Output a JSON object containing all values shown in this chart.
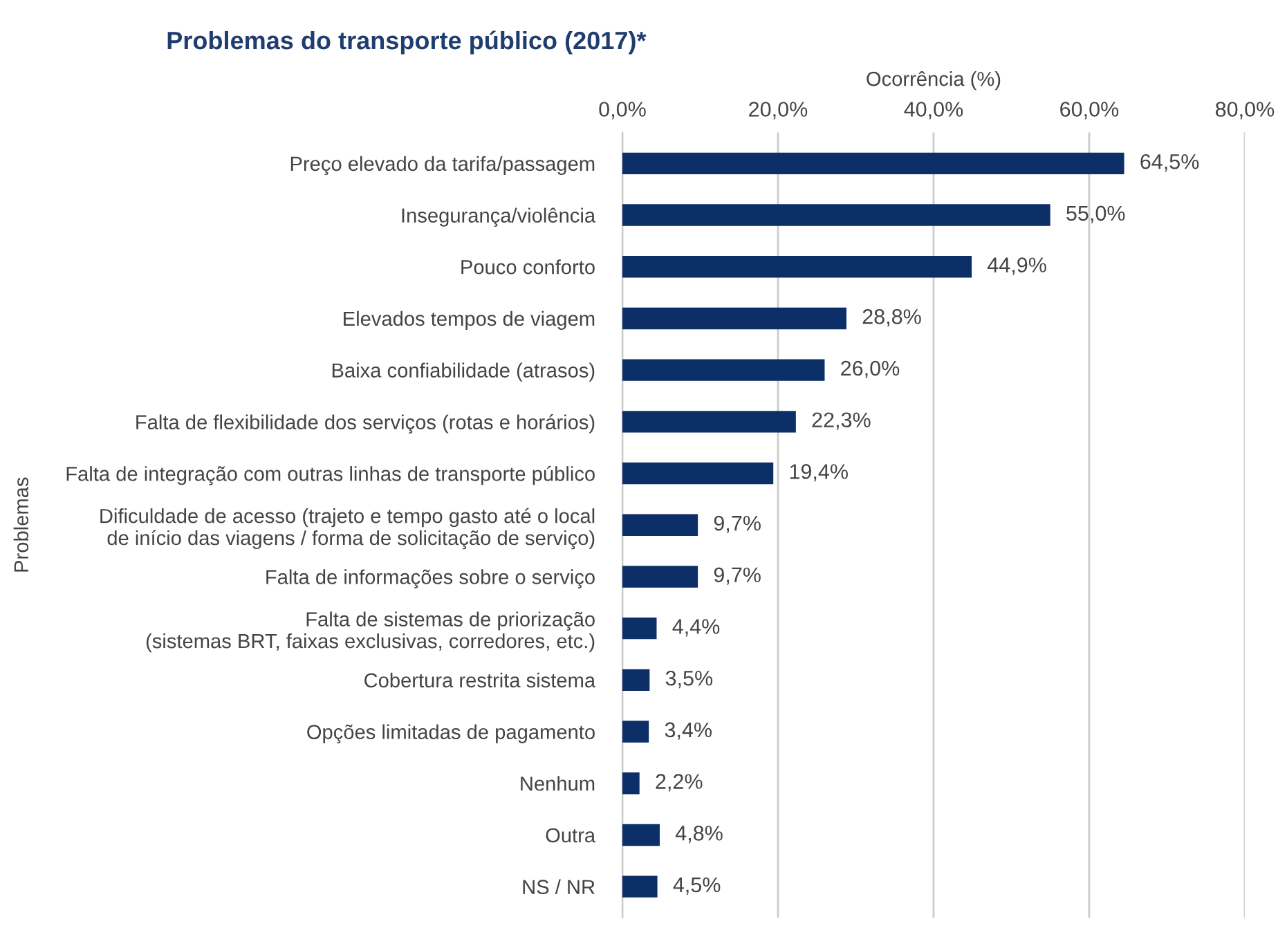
{
  "chart_data": {
    "type": "bar",
    "orientation": "horizontal",
    "title": "Problemas do transporte público (2017)*",
    "xlabel": "Ocorrência (%)",
    "ylabel": "Problemas",
    "categories": [
      "Preço elevado da tarifa/passagem",
      "Insegurança/violência",
      "Pouco conforto",
      "Elevados tempos de viagem",
      "Baixa confiabilidade (atrasos)",
      "Falta de flexibilidade dos serviços (rotas e horários)",
      "Falta de integração com outras linhas de transporte público",
      "Dificuldade de acesso (trajeto e tempo gasto até o local\nde início das viagens / forma de solicitação de serviço)",
      "Falta de informações sobre o serviço",
      "Falta de sistemas de priorização\n(sistemas BRT, faixas exclusivas, corredores, etc.)",
      "Cobertura restrita sistema",
      "Opções limitadas de pagamento",
      "Nenhum",
      "Outra",
      "NS / NR"
    ],
    "values": [
      64.5,
      55.0,
      44.9,
      28.8,
      26.0,
      22.3,
      19.4,
      9.7,
      9.7,
      4.4,
      3.5,
      3.4,
      2.2,
      4.8,
      4.5
    ],
    "value_labels": [
      "64,5%",
      "55,0%",
      "44,9%",
      "28,8%",
      "26,0%",
      "22,3%",
      "19,4%",
      "9,7%",
      "9,7%",
      "4,4%",
      "3,5%",
      "3,4%",
      "2,2%",
      "4,8%",
      "4,5%"
    ],
    "color": "#0b2f66",
    "xlim": [
      0,
      80
    ],
    "xticks": [
      {
        "value": 0,
        "label": "0,0%"
      },
      {
        "value": 20,
        "label": "20,0%"
      },
      {
        "value": 40,
        "label": "40,0%"
      },
      {
        "value": 60,
        "label": "60,0%"
      },
      {
        "value": 80,
        "label": "80,0%"
      }
    ],
    "grid": "x",
    "legend": false
  }
}
